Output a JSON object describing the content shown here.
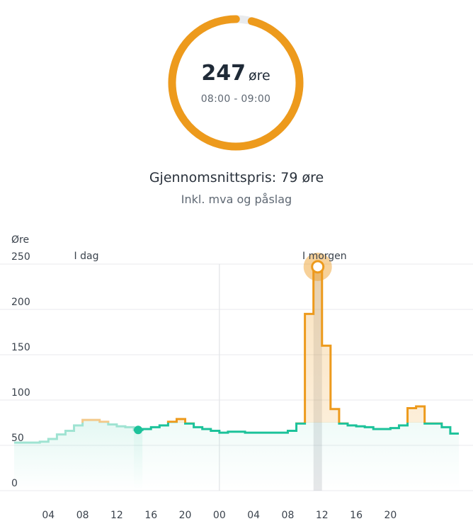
{
  "gauge": {
    "value": "247",
    "unit": "øre",
    "time_range": "08:00 - 09:00",
    "fill_fraction": 0.96,
    "color": "#ed9a1c",
    "track_color": "#e9ebee"
  },
  "average": {
    "text": "Gjennomsnittspris: 79 øre",
    "note": "Inkl. mva og påslag"
  },
  "chart_data": {
    "type": "line",
    "step": true,
    "y_unit_label": "Øre",
    "ylim": [
      0,
      250
    ],
    "yticks": [
      0,
      50,
      100,
      150,
      200,
      250
    ],
    "x_ticks": [
      "04",
      "08",
      "12",
      "16",
      "20",
      "00",
      "04",
      "08",
      "12",
      "16",
      "20"
    ],
    "day_labels": [
      "I dag",
      "I morgen"
    ],
    "grid": true,
    "high_threshold": 75,
    "colors": {
      "normal": "#1cc29a",
      "high": "#ed9a1c",
      "past": "#9fe3d2",
      "past_high": "#f3c98a"
    },
    "current_hour": 14.5,
    "highlighted_hour": "08:00 - 09:00",
    "highlighted_value": 247,
    "series": [
      {
        "values": [
          53,
          53,
          53,
          54,
          57,
          62,
          66,
          72,
          78,
          78,
          76,
          73,
          71,
          70,
          67,
          68,
          70,
          72,
          76,
          79,
          74,
          70,
          68,
          66,
          64,
          65,
          65,
          64,
          64,
          64,
          64,
          64,
          66,
          74,
          195,
          247,
          160,
          90,
          74,
          72,
          71,
          70,
          68,
          68,
          69,
          72,
          91,
          93,
          74,
          74,
          70,
          63
        ]
      }
    ]
  }
}
